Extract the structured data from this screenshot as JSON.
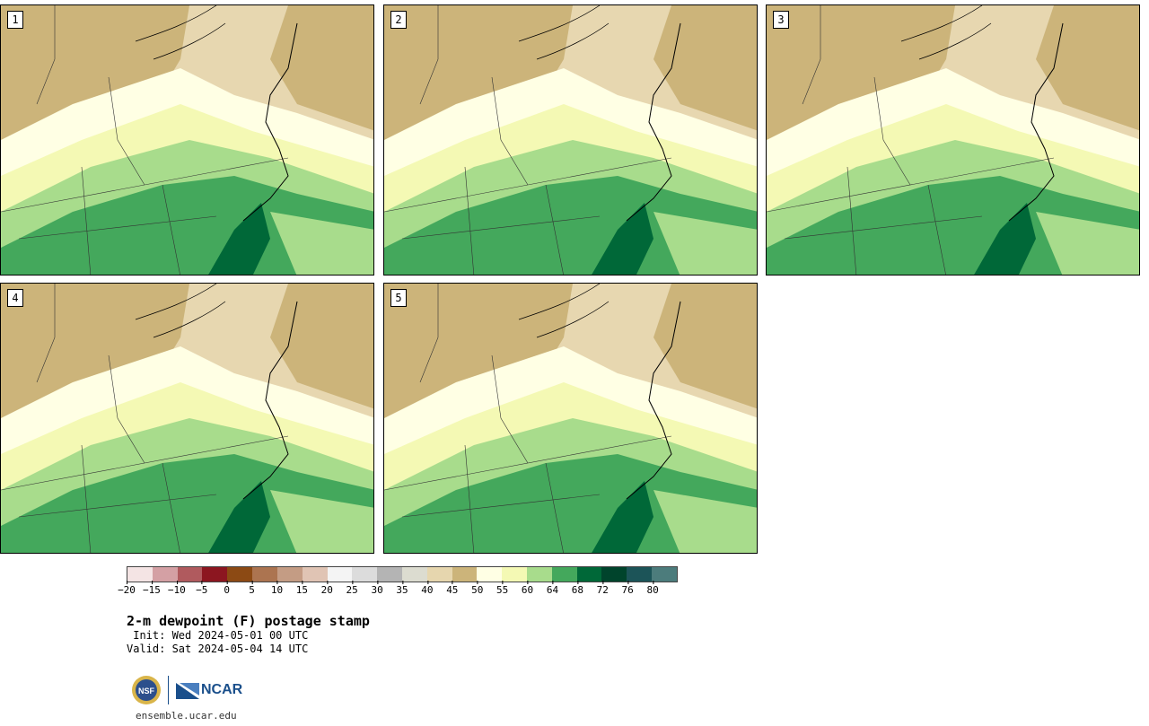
{
  "panels": [
    {
      "label": "1"
    },
    {
      "label": "2"
    },
    {
      "label": "3"
    },
    {
      "label": "4"
    },
    {
      "label": "5"
    }
  ],
  "colorbar": {
    "colors": [
      "#f4e4e4",
      "#d4a0a4",
      "#b05a5e",
      "#8c1620",
      "#8c4a14",
      "#ac7450",
      "#c49c84",
      "#e0c4b4",
      "#f4f4f4",
      "#dcdcdc",
      "#b4b4b4",
      "#dcdcd0",
      "#e6d6ae",
      "#ccb47a",
      "#ffffe4",
      "#f4f9b4",
      "#a8dc8c",
      "#44a85c",
      "#006838",
      "#00442c",
      "#1c5458",
      "#4c7c7c"
    ],
    "ticks": [
      "−20",
      "−15",
      "−10",
      "−5",
      "0",
      "5",
      "10",
      "15",
      "20",
      "25",
      "30",
      "35",
      "40",
      "45",
      "50",
      "55",
      "60",
      "64",
      "68",
      "72",
      "76",
      "80"
    ]
  },
  "title": "2-m dewpoint (F) postage stamp",
  "init": " Init: Wed 2024-05-01 00 UTC",
  "valid": "Valid: Sat 2024-05-04 14 UTC",
  "logos": {
    "nsf": "NSF",
    "ncar": "NCAR"
  },
  "site": "ensemble.ucar.edu"
}
